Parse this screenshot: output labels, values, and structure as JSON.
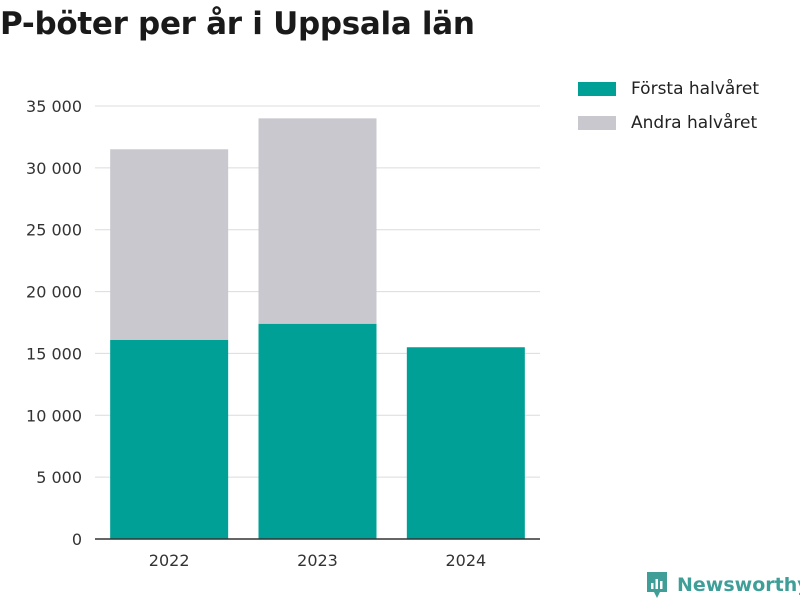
{
  "title": "P-böter per år i Uppsala län",
  "brand": {
    "name": "Newsworthy",
    "icon": "newsworthy-logo-icon",
    "color": "#3f9e98"
  },
  "chart_data": {
    "type": "bar",
    "stacked": true,
    "categories": [
      "2022",
      "2023",
      "2024"
    ],
    "series": [
      {
        "name": "Första halvåret",
        "color": "#00a096",
        "values": [
          16100,
          17400,
          15500
        ]
      },
      {
        "name": "Andra halvåret",
        "color": "#c8c8ce",
        "values": [
          15400,
          16600,
          0
        ]
      }
    ],
    "ylim": [
      0,
      35000
    ],
    "yticks": [
      0,
      5000,
      10000,
      15000,
      20000,
      25000,
      30000,
      35000
    ],
    "ytick_labels": [
      "0",
      "5 000",
      "10 000",
      "15 000",
      "20 000",
      "25 000",
      "30 000",
      "35 000"
    ],
    "grid": true,
    "legend": "top-right"
  }
}
